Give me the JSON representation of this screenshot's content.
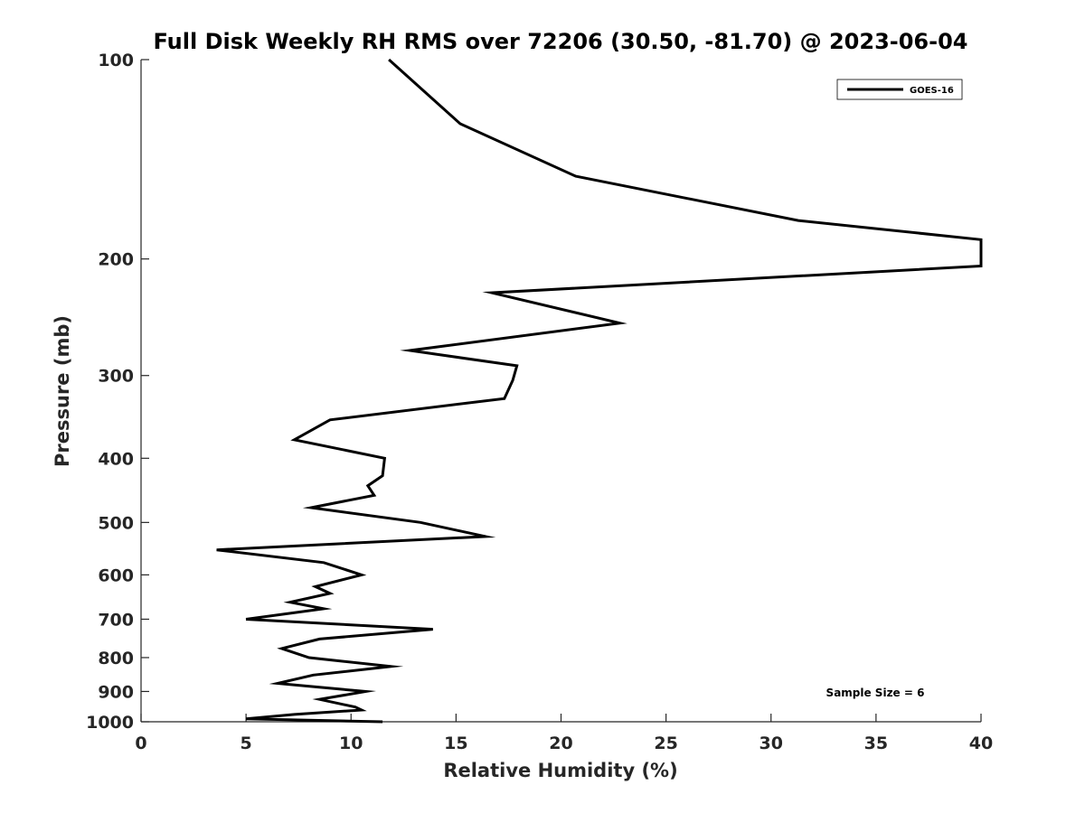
{
  "chart_data": {
    "type": "line",
    "title": "Full Disk Weekly RH RMS over 72206 (30.50, -81.70) @ 2023-06-04",
    "xlabel": "Relative Humidity (%)",
    "ylabel": "Pressure (mb)",
    "xlim": [
      0,
      40
    ],
    "ylim": [
      100,
      1000
    ],
    "y_scale": "log",
    "y_reversed": true,
    "grid": false,
    "x_ticks": [
      "0",
      "5",
      "10",
      "15",
      "20",
      "25",
      "30",
      "35",
      "40"
    ],
    "y_ticks": [
      "100",
      "200",
      "300",
      "400",
      "500",
      "600",
      "700",
      "800",
      "900",
      "1000"
    ],
    "legend": {
      "position": "top-right",
      "entries": [
        "GOES-16"
      ]
    },
    "annotation": "Sample Size = 6",
    "line_color": "#000000",
    "series": [
      {
        "name": "GOES-16",
        "points": [
          [
            11.8,
            100
          ],
          [
            15.2,
            125
          ],
          [
            20.7,
            150
          ],
          [
            31.3,
            175
          ],
          [
            40.0,
            187
          ],
          [
            40.0,
            205
          ],
          [
            16.7,
            225
          ],
          [
            22.8,
            250
          ],
          [
            12.8,
            275
          ],
          [
            17.9,
            290
          ],
          [
            17.7,
            305
          ],
          [
            17.3,
            325
          ],
          [
            9.0,
            350
          ],
          [
            7.3,
            375
          ],
          [
            11.6,
            400
          ],
          [
            11.5,
            425
          ],
          [
            10.8,
            440
          ],
          [
            11.1,
            455
          ],
          [
            8.1,
            475
          ],
          [
            13.3,
            500
          ],
          [
            16.4,
            525
          ],
          [
            3.6,
            550
          ],
          [
            8.7,
            575
          ],
          [
            10.5,
            600
          ],
          [
            8.3,
            625
          ],
          [
            9.0,
            640
          ],
          [
            7.1,
            660
          ],
          [
            8.7,
            675
          ],
          [
            5.0,
            700
          ],
          [
            13.9,
            725
          ],
          [
            8.5,
            750
          ],
          [
            6.7,
            775
          ],
          [
            8.0,
            800
          ],
          [
            11.9,
            825
          ],
          [
            8.2,
            850
          ],
          [
            6.5,
            875
          ],
          [
            10.7,
            900
          ],
          [
            8.5,
            925
          ],
          [
            10.2,
            950
          ],
          [
            10.5,
            960
          ],
          [
            7.3,
            975
          ],
          [
            5.0,
            990
          ],
          [
            11.5,
            1000
          ]
        ]
      }
    ]
  }
}
